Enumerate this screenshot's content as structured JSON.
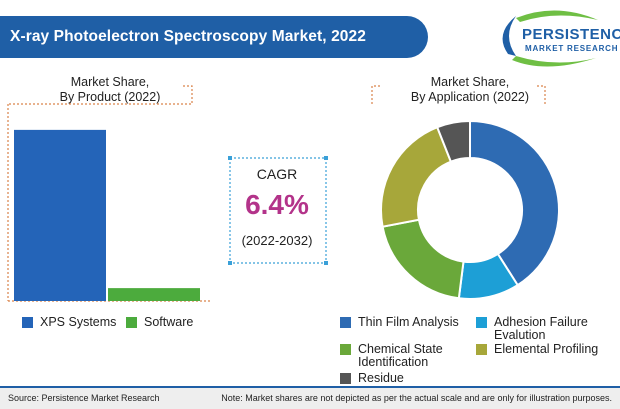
{
  "header": {
    "title": "X-ray Photoelectron Spectroscopy Market, 2022"
  },
  "logo": {
    "name": "PERSISTENCE",
    "tagline": "MARKET RESEARCH"
  },
  "cagr": {
    "label": "CAGR",
    "value": "6.4%",
    "period": "(2022-2032)"
  },
  "colors": {
    "brand_blue": "#1f5fa6",
    "accent_orange": "#d9834a",
    "cagr_magenta": "#b3338a",
    "dotted_blue": "#3aa0d8"
  },
  "footer": {
    "source": "Source: Persistence Market Research",
    "note": "Note: Market shares are not depicted as per the actual scale and are only for illustration purposes."
  },
  "chart_data": [
    {
      "type": "bar",
      "title": [
        "Market Share,",
        "By Product (2022)"
      ],
      "categories": [
        "XPS Systems",
        "Software"
      ],
      "values": [
        93,
        7
      ],
      "colors": [
        "#2464b8",
        "#4cab3d"
      ],
      "ylim": [
        0,
        100
      ],
      "grid": false,
      "legend": "bottom"
    },
    {
      "type": "pie",
      "donut": true,
      "title": [
        "Market Share,",
        "By Application (2022)"
      ],
      "labels": [
        "Thin Film Analysis",
        "Adhesion Failure Evalution",
        "Chemical State Identification",
        "Elemental Profiling",
        "Residue"
      ],
      "values": [
        41,
        11,
        20,
        22,
        6
      ],
      "colors": [
        "#2e6bb3",
        "#1d9fd6",
        "#6aa83a",
        "#a7a73a",
        "#555555"
      ],
      "legend": "bottom"
    }
  ]
}
